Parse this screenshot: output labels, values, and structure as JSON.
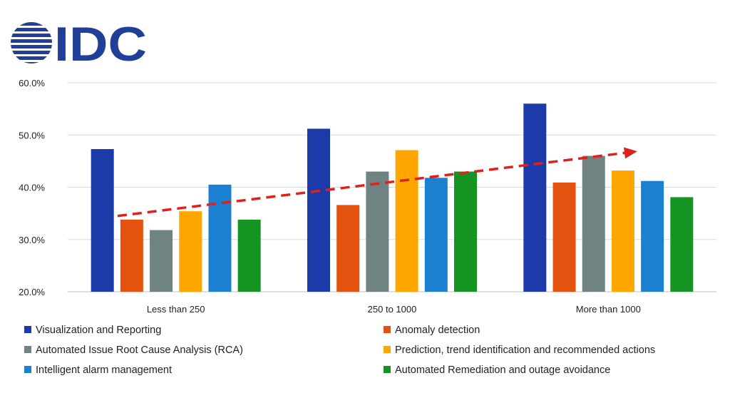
{
  "logo": {
    "text": "IDC",
    "color": "#1f3f99"
  },
  "chart_data": {
    "type": "bar",
    "categories": [
      "Less than 250",
      "250 to 1000",
      "More than 1000"
    ],
    "series": [
      {
        "name": "Visualization and Reporting",
        "color": "#1c3aa9",
        "values": [
          47.3,
          51.2,
          56.0
        ]
      },
      {
        "name": "Anomaly detection",
        "color": "#e3520e",
        "values": [
          33.8,
          36.6,
          40.9
        ]
      },
      {
        "name": "Automated Issue Root Cause Analysis (RCA)",
        "color": "#6f8383",
        "values": [
          31.8,
          43.0,
          46.0
        ]
      },
      {
        "name": "Prediction, trend identification and recommended actions",
        "color": "#ffa600",
        "values": [
          35.4,
          47.1,
          43.2
        ]
      },
      {
        "name": "Intelligent alarm management",
        "color": "#1a80cf",
        "values": [
          40.5,
          41.8,
          41.2
        ]
      },
      {
        "name": "Automated Remediation and outage avoidance",
        "color": "#159424",
        "values": [
          33.8,
          43.0,
          38.1
        ]
      }
    ],
    "ylim": [
      20,
      60
    ],
    "yticks": [
      "20.0%",
      "30.0%",
      "40.0%",
      "50.0%",
      "60.0%"
    ],
    "ytick_values": [
      20,
      30,
      40,
      50,
      60
    ],
    "grid": true,
    "legend": "bottom",
    "trendline": {
      "style": "dashed-arrow",
      "color": "#e0201b",
      "from": 34.5,
      "to": 46.6
    }
  }
}
